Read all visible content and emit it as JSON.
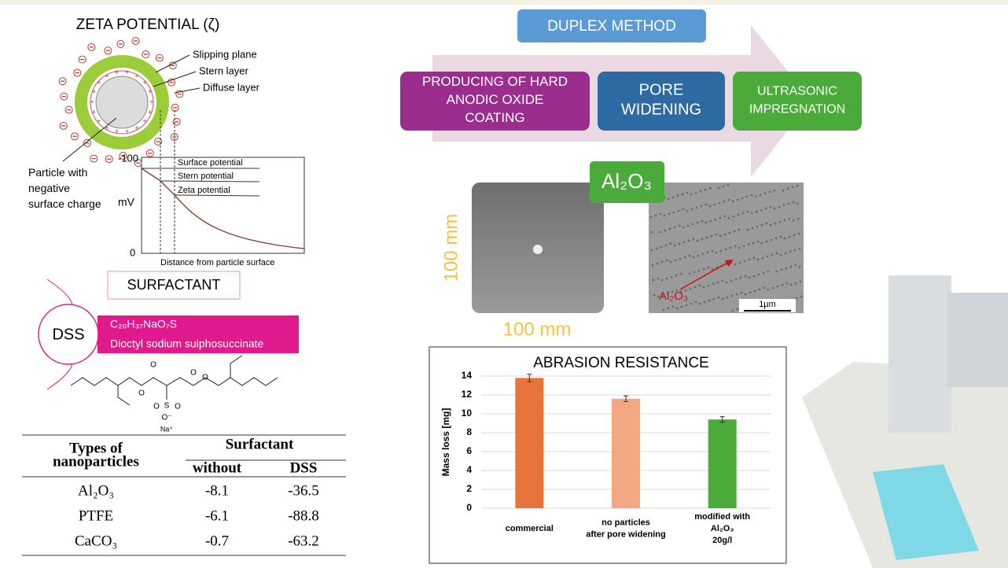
{
  "zeta": {
    "title": "ZETA POTENTIAL (ζ)",
    "layers": [
      "Slipping plane",
      "Stern layer",
      "Diffuse layer"
    ],
    "particle": "Particle with\nnegative\nsurface charge",
    "y_top": "-100",
    "y_bottom": "0",
    "y_unit": "mV",
    "potentials": [
      "Surface potential",
      "Stern potential",
      "Zeta potential"
    ],
    "x_label": "Distance from particle surface"
  },
  "surfactant": {
    "title": "SURFACTANT",
    "abbr": "DSS",
    "formula": "C₂₀H₃₇NaO₇S",
    "name": "Dioctyl sodium sulphosuccinate",
    "atoms": [
      "O",
      "O",
      "O",
      "O",
      "S",
      "O",
      "O",
      "O⁻",
      "Na⁺"
    ]
  },
  "table": {
    "header": [
      "Types of\nnanoparticles",
      "Surfactant",
      "without",
      "DSS"
    ],
    "rows": [
      [
        "Al₂O₃",
        -8.1,
        -36.5
      ],
      [
        "PTFE",
        -6.1,
        -88.8
      ],
      [
        "CaCO₃",
        -0.7,
        -63.2
      ]
    ]
  },
  "duplex": {
    "title": "DUPLEX METHOD",
    "steps": [
      "PRODUCING OF HARD\nANODIC OXIDE\nCOATING",
      "PORE\nWIDENING",
      "ULTRASONIC\nIMPREGNATION"
    ]
  },
  "sample": {
    "badge": "Al₂O₃",
    "height": "100 mm",
    "width": "100 mm",
    "sem_label": "Al₂O₃",
    "scale": "1µm"
  },
  "chart": {
    "type": "bar",
    "title": "ABRASION RESISTANCE",
    "y_label": "Mass loss [mg]",
    "categories": [
      "commercial",
      "no particles\nafter pore widening",
      "modified with\nAl₂O₃\n20g/l"
    ],
    "values": [
      13.8,
      11.6,
      9.4
    ],
    "errors": [
      0.4,
      0.3,
      0.3
    ],
    "colors": [
      "#e8743b",
      "#f2a982",
      "#4aaa3a"
    ],
    "ylim": [
      0,
      14
    ],
    "yticks": [
      0,
      2,
      4,
      6,
      8,
      10,
      12,
      14
    ],
    "grid": true
  }
}
